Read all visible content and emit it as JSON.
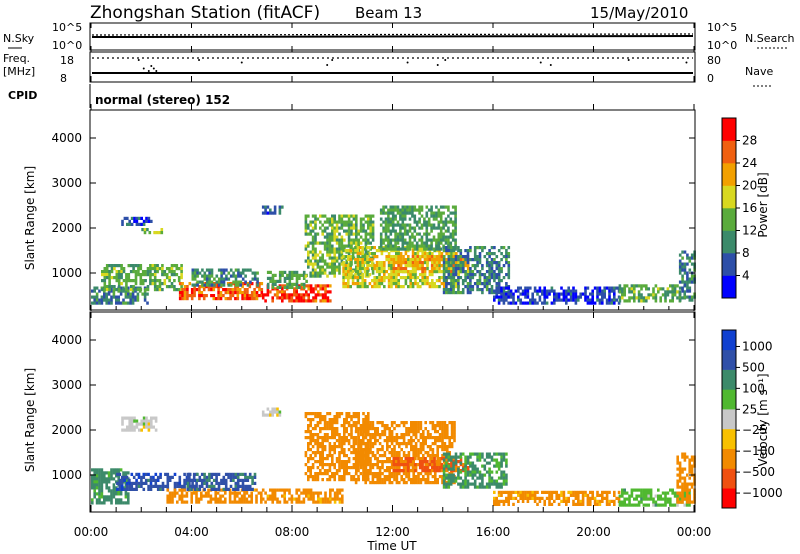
{
  "header": {
    "station": "Zhongshan Station (fitACF)",
    "beam": "Beam 13",
    "date": "15/May/2010"
  },
  "noise_panel": {
    "left_label": "N.Sky",
    "right_label": "N.Search",
    "left_ticks": [
      "10^5",
      "10^0"
    ],
    "right_ticks": [
      "10^5",
      "10^0"
    ]
  },
  "freq_panel": {
    "left_label_top": "Freq.",
    "left_label_bottom": "[MHz]",
    "right_label": "Nave",
    "left_ticks": [
      "18",
      "8"
    ],
    "right_ticks": [
      "80",
      "0"
    ]
  },
  "cpid": {
    "label": "CPID",
    "text": "normal (stereo) 152"
  },
  "colors": {
    "power": [
      "#0000ff",
      "#2d4fa8",
      "#3b8a6a",
      "#5aab3c",
      "#d8d820",
      "#f2a000",
      "#f06010",
      "#ff0000"
    ],
    "velocity": [
      "#ff0000",
      "#f05010",
      "#f28a00",
      "#f8c000",
      "#c8c8c8",
      "#50b830",
      "#3c8a6a",
      "#3050a8",
      "#1040d0"
    ]
  },
  "chart_data": [
    {
      "type": "heatmap",
      "name": "power",
      "ylabel": "Slant Range [km]",
      "yticks": [
        "1000",
        "2000",
        "3000",
        "4000"
      ],
      "ylim": [
        200,
        4600
      ],
      "xlim": [
        0,
        24
      ],
      "colorbar_label": "Power [dB]",
      "colorbar_ticks": [
        "4",
        "8",
        "12",
        "16",
        "20",
        "24",
        "28"
      ],
      "colorbar_range": [
        0,
        32
      ],
      "patches": [
        {
          "t0": 0.0,
          "t1": 2.2,
          "r0": 350,
          "r1": 700,
          "v": 9
        },
        {
          "t0": 0.4,
          "t1": 3.6,
          "r0": 600,
          "r1": 1200,
          "v": 13
        },
        {
          "t0": 1.2,
          "t1": 2.4,
          "r0": 2050,
          "r1": 2250,
          "v": 6
        },
        {
          "t0": 2.0,
          "t1": 2.8,
          "r0": 1900,
          "r1": 2000,
          "v": 15
        },
        {
          "t0": 3.5,
          "t1": 6.8,
          "r0": 400,
          "r1": 800,
          "v": 26
        },
        {
          "t0": 4.0,
          "t1": 6.6,
          "r0": 700,
          "r1": 1100,
          "v": 10
        },
        {
          "t0": 6.8,
          "t1": 9.5,
          "r0": 350,
          "r1": 750,
          "v": 27
        },
        {
          "t0": 7.0,
          "t1": 8.6,
          "r0": 700,
          "r1": 1050,
          "v": 12
        },
        {
          "t0": 6.8,
          "t1": 7.6,
          "r0": 2300,
          "r1": 2500,
          "v": 6
        },
        {
          "t0": 8.5,
          "t1": 11.2,
          "r0": 900,
          "r1": 2300,
          "v": 14
        },
        {
          "t0": 10.0,
          "t1": 14.6,
          "r0": 700,
          "r1": 1600,
          "v": 18
        },
        {
          "t0": 11.5,
          "t1": 14.5,
          "r0": 1500,
          "r1": 2500,
          "v": 12
        },
        {
          "t0": 12.0,
          "t1": 15.0,
          "r0": 1000,
          "r1": 1400,
          "v": 22
        },
        {
          "t0": 14.0,
          "t1": 16.6,
          "r0": 550,
          "r1": 1600,
          "v": 9
        },
        {
          "t0": 16.0,
          "t1": 21.0,
          "r0": 350,
          "r1": 700,
          "v": 5
        },
        {
          "t0": 21.0,
          "t1": 23.6,
          "r0": 350,
          "r1": 750,
          "v": 13
        },
        {
          "t0": 23.4,
          "t1": 24.0,
          "r0": 400,
          "r1": 1500,
          "v": 9
        }
      ]
    },
    {
      "type": "heatmap",
      "name": "velocity",
      "ylabel": "Slant Range [km]",
      "yticks": [
        "1000",
        "2000",
        "3000",
        "4000"
      ],
      "ylim": [
        200,
        4600
      ],
      "xlim": [
        0,
        24
      ],
      "xticks": [
        "00:00",
        "04:00",
        "08:00",
        "12:00",
        "16:00",
        "20:00",
        "00:00"
      ],
      "xlabel": "Time UT",
      "colorbar_label": "Velocity [m s⁻¹]",
      "colorbar_ticks": [
        "1000",
        "500",
        "100",
        "25",
        "−25",
        "−100",
        "−500",
        "−1000"
      ],
      "patches": [
        {
          "t0": 0.0,
          "t1": 1.5,
          "r0": 350,
          "r1": 1150,
          "v": 150
        },
        {
          "t0": 1.0,
          "t1": 4.2,
          "r0": 650,
          "r1": 1050,
          "v": 800
        },
        {
          "t0": 1.2,
          "t1": 2.6,
          "r0": 2000,
          "r1": 2300,
          "v": 0
        },
        {
          "t0": 3.0,
          "t1": 6.8,
          "r0": 400,
          "r1": 700,
          "v": -200
        },
        {
          "t0": 3.8,
          "t1": 6.5,
          "r0": 700,
          "r1": 1050,
          "v": 600
        },
        {
          "t0": 6.8,
          "t1": 7.5,
          "r0": 2300,
          "r1": 2500,
          "v": 0
        },
        {
          "t0": 6.8,
          "t1": 10.0,
          "r0": 400,
          "r1": 700,
          "v": -150
        },
        {
          "t0": 8.5,
          "t1": 11.0,
          "r0": 900,
          "r1": 2400,
          "v": -200
        },
        {
          "t0": 10.5,
          "t1": 14.5,
          "r0": 800,
          "r1": 2200,
          "v": -300
        },
        {
          "t0": 12.0,
          "t1": 15.0,
          "r0": 1100,
          "r1": 1400,
          "v": -600
        },
        {
          "t0": 14.0,
          "t1": 16.5,
          "r0": 700,
          "r1": 1500,
          "v": 120
        },
        {
          "t0": 16.0,
          "t1": 21.0,
          "r0": 350,
          "r1": 650,
          "v": -150
        },
        {
          "t0": 21.0,
          "t1": 23.8,
          "r0": 350,
          "r1": 700,
          "v": 60
        },
        {
          "t0": 23.3,
          "t1": 24.0,
          "r0": 400,
          "r1": 1500,
          "v": -300
        }
      ]
    }
  ]
}
